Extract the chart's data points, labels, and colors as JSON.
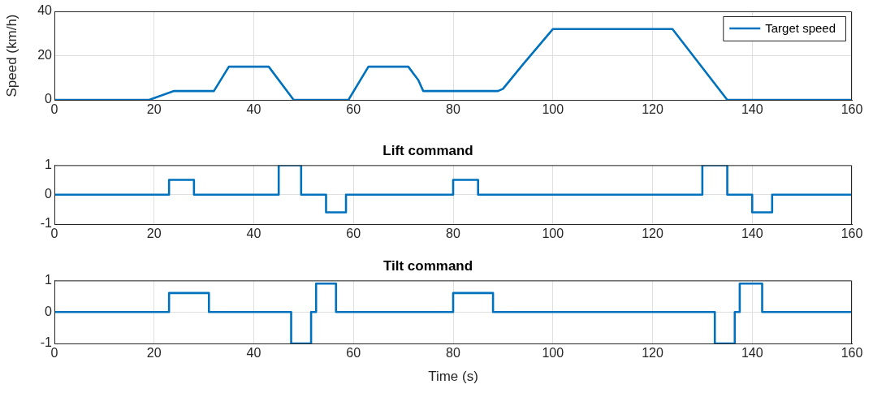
{
  "chart_data": [
    {
      "type": "line",
      "ylabel": "Speed (km/h)",
      "x": [
        0,
        19,
        24,
        32,
        35,
        43,
        48,
        59,
        63,
        71,
        73,
        74,
        89,
        90,
        94,
        100,
        124,
        135,
        160
      ],
      "series": [
        {
          "name": "Target speed",
          "color": "#0072bd",
          "values": [
            0,
            0,
            4,
            4,
            15,
            15,
            0,
            0,
            15,
            15,
            9,
            4,
            4,
            5,
            16,
            32,
            32,
            0,
            0
          ]
        }
      ],
      "xlim": [
        0,
        160
      ],
      "xticks": [
        0,
        20,
        40,
        60,
        80,
        100,
        120,
        140,
        160
      ],
      "ylim": [
        0,
        40
      ],
      "yticks": [
        0,
        20,
        40
      ],
      "grid": true,
      "legend": "top right"
    },
    {
      "type": "step",
      "title": "Lift command",
      "x": [
        0,
        23,
        28,
        45,
        49.5,
        54.5,
        58.5,
        80,
        85,
        130,
        135,
        140,
        144,
        160
      ],
      "series": [
        {
          "color": "#0072bd",
          "values": [
            0,
            0.5,
            0,
            1,
            0,
            -0.6,
            0,
            0.5,
            0,
            1,
            0,
            -0.6,
            0,
            0
          ]
        }
      ],
      "xlim": [
        0,
        160
      ],
      "xticks": [
        0,
        20,
        40,
        60,
        80,
        100,
        120,
        140,
        160
      ],
      "ylim": [
        -1,
        1
      ],
      "yticks": [
        -1,
        0,
        1
      ],
      "grid": true
    },
    {
      "type": "step",
      "title": "Tilt command",
      "xlabel": "Time (s)",
      "x": [
        0,
        23,
        31,
        47.5,
        51.5,
        52.5,
        56.5,
        80,
        88,
        132.5,
        136.5,
        137.5,
        142,
        160
      ],
      "series": [
        {
          "color": "#0072bd",
          "values": [
            0,
            0.6,
            0,
            -1,
            0,
            0.9,
            0,
            0.6,
            0,
            -1,
            0,
            0.9,
            0,
            0
          ]
        }
      ],
      "xlim": [
        0,
        160
      ],
      "xticks": [
        0,
        20,
        40,
        60,
        80,
        100,
        120,
        140,
        160
      ],
      "ylim": [
        -1,
        1
      ],
      "yticks": [
        -1,
        0,
        1
      ],
      "grid": true
    }
  ]
}
